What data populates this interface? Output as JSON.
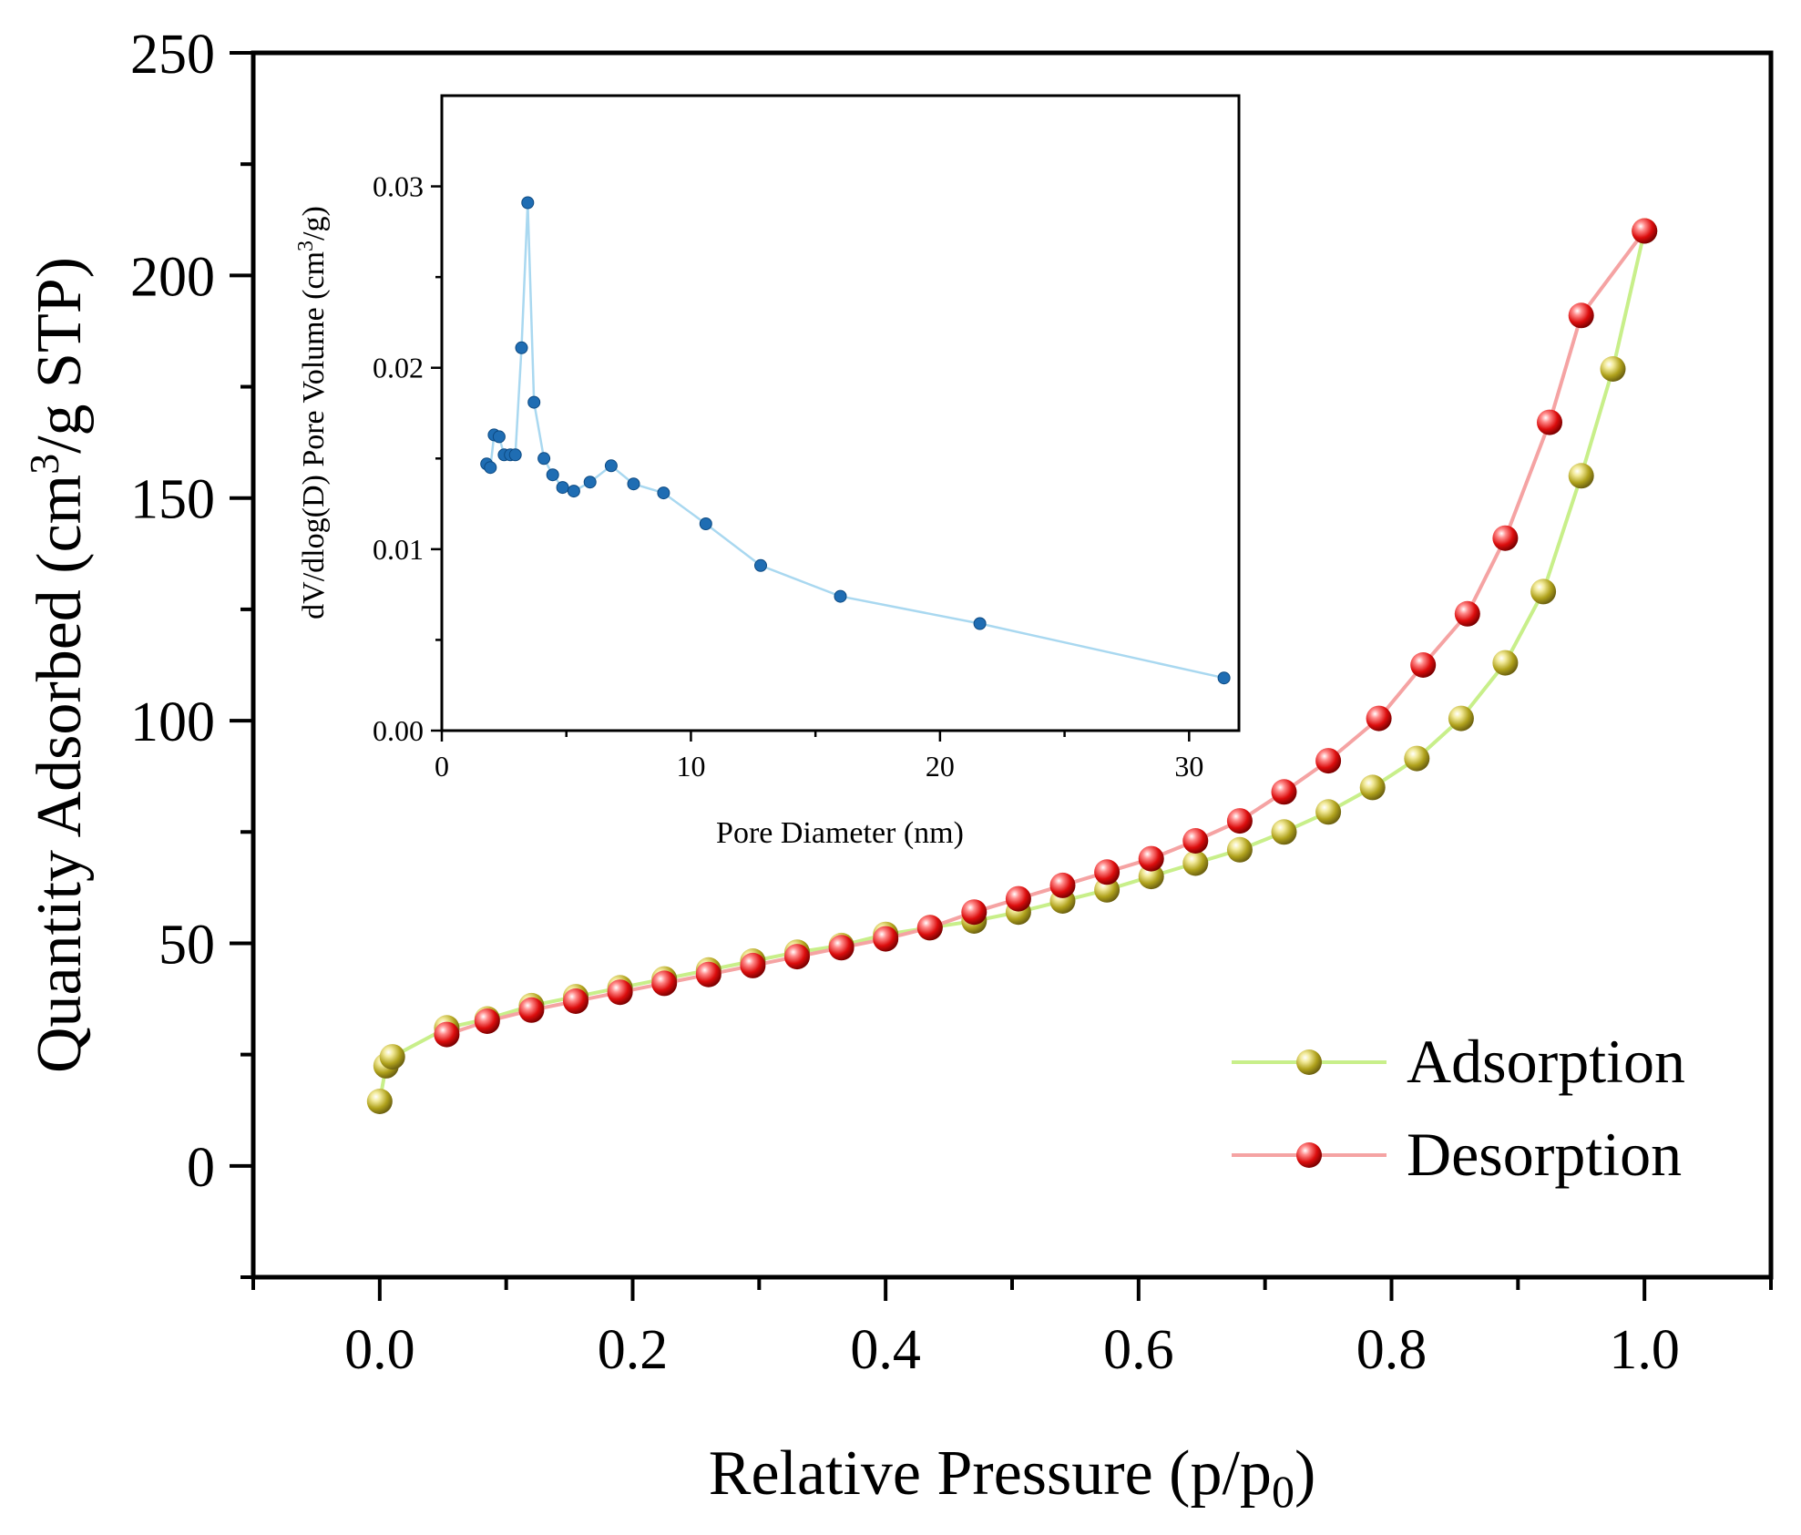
{
  "chart_data": [
    {
      "type": "line",
      "xlabel": "Relative Pressure (p/p",
      "xlabel_sub": "0",
      "xlabel_end": ")",
      "ylabel": "Quantity Adsorbed (cm",
      "ylabel_sup": "3",
      "ylabel_end": "/g STP)",
      "xlim": [
        -0.1,
        1.1
      ],
      "ylim": [
        -25,
        250
      ],
      "x_ticks": [
        0.0,
        0.2,
        0.4,
        0.6,
        0.8,
        1.0
      ],
      "x_tick_labels": [
        "0.0",
        "0.2",
        "0.4",
        "0.6",
        "0.8",
        "1.0"
      ],
      "y_ticks": [
        0,
        50,
        100,
        150,
        200,
        250
      ],
      "y_tick_labels": [
        "0",
        "50",
        "100",
        "150",
        "200",
        "250"
      ],
      "grid": false,
      "legend_position": "bottom-right",
      "series": [
        {
          "name": "Adsorption",
          "line_color": "#c8ef8a",
          "marker_color": "#b0a21c",
          "x": [
            0.0,
            0.005,
            0.01,
            0.053,
            0.085,
            0.12,
            0.155,
            0.19,
            0.225,
            0.26,
            0.295,
            0.33,
            0.365,
            0.4,
            0.435,
            0.47,
            0.505,
            0.54,
            0.575,
            0.61,
            0.645,
            0.68,
            0.715,
            0.75,
            0.785,
            0.82,
            0.855,
            0.89,
            0.92,
            0.95,
            0.975,
            1.0
          ],
          "y": [
            14.5,
            22.5,
            24.5,
            31,
            33,
            36,
            38,
            40,
            42,
            44,
            46,
            48,
            49.5,
            52,
            53.5,
            55,
            57,
            59.5,
            62,
            65,
            68,
            71,
            75,
            79.5,
            85,
            91.5,
            100.5,
            113,
            129,
            155,
            179,
            210
          ]
        },
        {
          "name": "Desorption",
          "line_color": "#f5a3a3",
          "marker_color": "#dc0d0d",
          "x": [
            0.053,
            0.085,
            0.12,
            0.155,
            0.19,
            0.225,
            0.26,
            0.295,
            0.33,
            0.365,
            0.4,
            0.435,
            0.47,
            0.505,
            0.54,
            0.575,
            0.61,
            0.645,
            0.68,
            0.715,
            0.75,
            0.79,
            0.825,
            0.86,
            0.89,
            0.925,
            0.95,
            1.0
          ],
          "y": [
            29.5,
            32.5,
            35,
            37,
            39,
            41,
            43,
            45,
            47,
            49,
            51,
            53.5,
            57,
            60,
            63,
            66,
            69,
            73,
            77.5,
            84,
            91,
            100.5,
            112.5,
            124,
            141,
            167,
            191,
            210
          ]
        }
      ]
    },
    {
      "type": "line",
      "xlabel": "Pore Diameter (nm)",
      "ylabel": "dV/dlog(D) Pore Volume (cm",
      "ylabel_sup": "3",
      "ylabel_end": "/g)",
      "xlim": [
        0,
        32
      ],
      "ylim": [
        0,
        0.035
      ],
      "x_ticks": [
        0,
        10,
        20,
        30
      ],
      "x_tick_labels": [
        "0",
        "10",
        "20",
        "30"
      ],
      "x_minor_ticks": [
        5,
        15,
        25
      ],
      "y_ticks": [
        0.0,
        0.01,
        0.02,
        0.03
      ],
      "y_tick_labels": [
        "0.00",
        "0.01",
        "0.02",
        "0.03"
      ],
      "y_minor_ticks": [
        0.005,
        0.015,
        0.025
      ],
      "grid": false,
      "series": [
        {
          "line_color": "#a9d8f0",
          "marker_color": "#1f6db3",
          "x": [
            1.8,
            1.95,
            2.1,
            2.3,
            2.5,
            2.75,
            2.95,
            3.2,
            3.45,
            3.7,
            4.1,
            4.45,
            4.85,
            5.3,
            5.95,
            6.8,
            7.7,
            8.9,
            10.6,
            12.8,
            16.0,
            21.6,
            31.4
          ],
          "y": [
            0.0147,
            0.0145,
            0.0163,
            0.0162,
            0.0152,
            0.0152,
            0.0152,
            0.0211,
            0.0291,
            0.0181,
            0.015,
            0.0141,
            0.0134,
            0.0132,
            0.0137,
            0.0146,
            0.0136,
            0.0131,
            0.0114,
            0.0091,
            0.0074,
            0.0059,
            0.0029
          ]
        }
      ]
    }
  ]
}
